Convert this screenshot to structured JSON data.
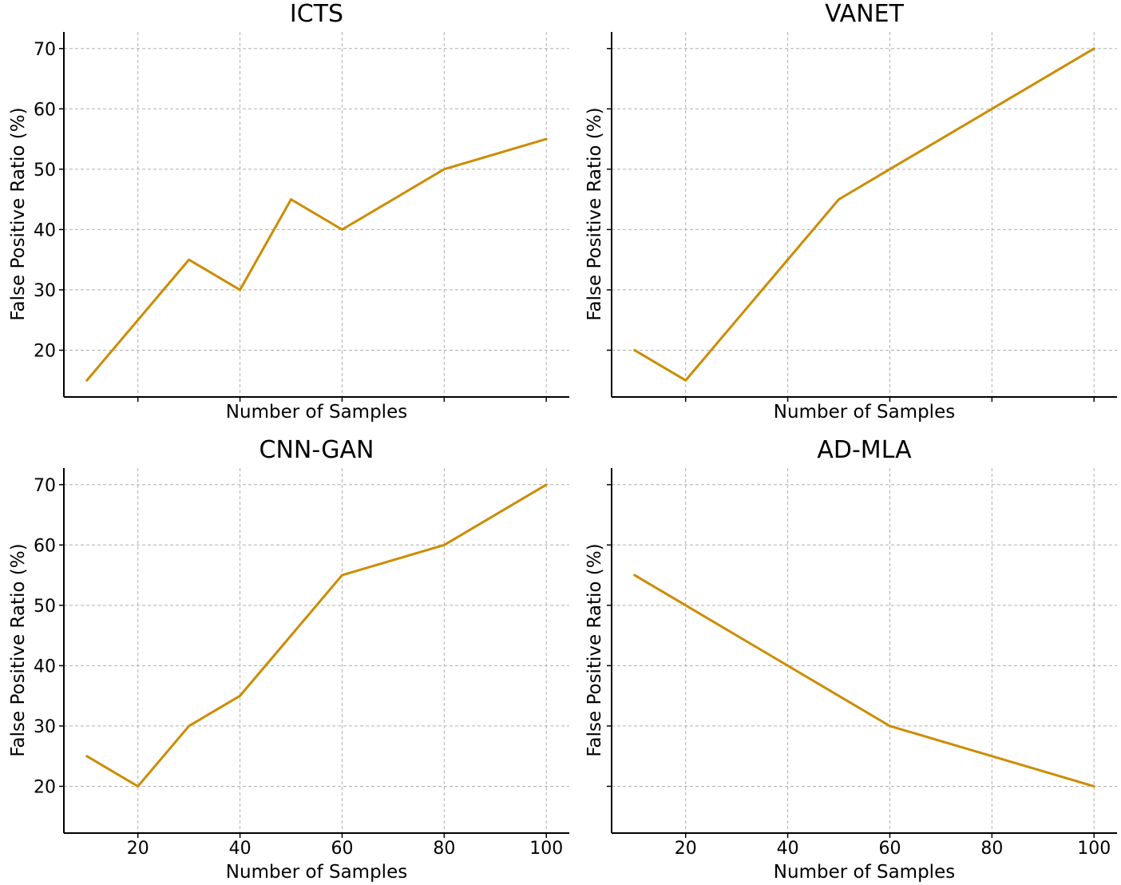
{
  "chart_data": [
    {
      "type": "line",
      "title": "ICTS",
      "xlabel": "Number of Samples",
      "ylabel": "False Positive Ratio (%)",
      "x": [
        10,
        20,
        30,
        40,
        50,
        60,
        70,
        80,
        90,
        100
      ],
      "series": [
        {
          "name": "ICTS",
          "values": [
            15,
            25,
            35,
            30,
            45,
            40,
            45,
            50,
            52.5,
            55
          ]
        }
      ],
      "xticks": [
        20,
        40,
        60,
        80,
        100
      ],
      "xtick_labels_visible": false,
      "yticks": [
        20,
        30,
        40,
        50,
        60,
        70
      ],
      "ytick_labels_visible": true,
      "xlim": [
        5.5,
        104.5
      ],
      "ylim": [
        12.25,
        72.75
      ],
      "grid": true,
      "color": "#cc8c00"
    },
    {
      "type": "line",
      "title": "VANET",
      "xlabel": "Number of Samples",
      "ylabel": "False Positive Ratio (%)",
      "x": [
        10,
        20,
        30,
        40,
        50,
        60,
        70,
        80,
        90,
        100
      ],
      "series": [
        {
          "name": "VANET",
          "values": [
            20,
            15,
            25,
            35,
            45,
            50,
            55,
            60,
            65,
            70
          ]
        }
      ],
      "xticks": [
        20,
        40,
        60,
        80,
        100
      ],
      "xtick_labels_visible": false,
      "yticks": [
        20,
        30,
        40,
        50,
        60,
        70
      ],
      "ytick_labels_visible": false,
      "xlim": [
        5.5,
        104.5
      ],
      "ylim": [
        12.25,
        72.75
      ],
      "grid": true,
      "color": "#cc8c00"
    },
    {
      "type": "line",
      "title": "CNN-GAN",
      "xlabel": "Number of Samples",
      "ylabel": "False Positive Ratio (%)",
      "x": [
        10,
        20,
        30,
        40,
        50,
        60,
        70,
        80,
        90,
        100
      ],
      "series": [
        {
          "name": "CNN-GAN",
          "values": [
            25,
            20,
            30,
            35,
            45,
            55,
            57.5,
            60,
            65,
            70
          ]
        }
      ],
      "xticks": [
        20,
        40,
        60,
        80,
        100
      ],
      "xtick_labels_visible": true,
      "yticks": [
        20,
        30,
        40,
        50,
        60,
        70
      ],
      "ytick_labels_visible": true,
      "xlim": [
        5.5,
        104.5
      ],
      "ylim": [
        12.25,
        72.75
      ],
      "grid": true,
      "color": "#cc8c00"
    },
    {
      "type": "line",
      "title": "AD-MLA",
      "xlabel": "Number of Samples",
      "ylabel": "False Positive Ratio (%)",
      "x": [
        10,
        20,
        30,
        40,
        50,
        60,
        70,
        80,
        90,
        100
      ],
      "series": [
        {
          "name": "AD-MLA",
          "values": [
            55,
            50,
            45,
            40,
            35,
            30,
            27.5,
            25,
            22.5,
            20
          ]
        }
      ],
      "xticks": [
        20,
        40,
        60,
        80,
        100
      ],
      "xtick_labels_visible": true,
      "yticks": [
        20,
        30,
        40,
        50,
        60,
        70
      ],
      "ytick_labels_visible": false,
      "xlim": [
        5.5,
        104.5
      ],
      "ylim": [
        12.25,
        72.75
      ],
      "grid": true,
      "color": "#cc8c00"
    }
  ]
}
